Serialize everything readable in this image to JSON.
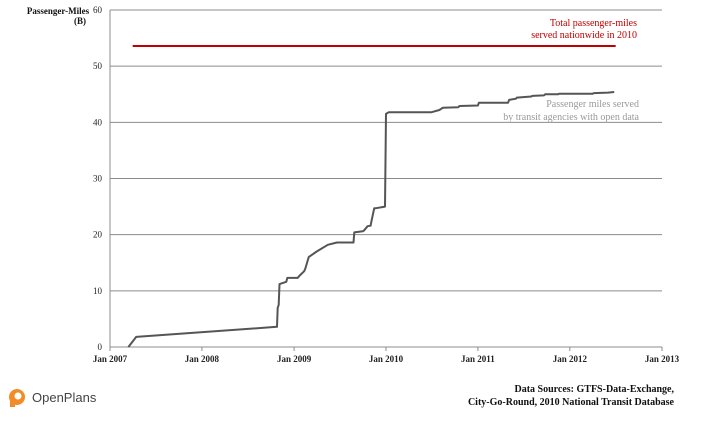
{
  "chart_data": {
    "type": "line",
    "ylabel": [
      "Passenger-Miles",
      "(B)"
    ],
    "xlabel": "",
    "ylim": [
      0,
      60
    ],
    "yticks": [
      0,
      10,
      20,
      30,
      40,
      50,
      60
    ],
    "xlim": [
      "2007-01-01",
      "2013-01-01"
    ],
    "xticks": [
      {
        "date": "2007-01-01",
        "label": "Jan 2007"
      },
      {
        "date": "2008-01-01",
        "label": "Jan 2008"
      },
      {
        "date": "2009-01-01",
        "label": "Jan 2009"
      },
      {
        "date": "2010-01-01",
        "label": "Jan 2010"
      },
      {
        "date": "2011-01-01",
        "label": "Jan 2011"
      },
      {
        "date": "2012-01-01",
        "label": "Jan 2012"
      },
      {
        "date": "2013-01-01",
        "label": "Jan 2013"
      }
    ],
    "grid": "horizontal",
    "reference_line": {
      "value": 53.6,
      "x_start": "2007-04-01",
      "x_end": "2012-07-01",
      "color": "#c00000",
      "label": [
        "Total passenger-miles",
        "served nationwide in 2010"
      ]
    },
    "series": [
      {
        "label": [
          "Passenger miles served",
          "by transit agencies with open data"
        ],
        "color": "#555555",
        "x": [
          "2007-03-15",
          "2007-04-15",
          "2008-10-25",
          "2008-10-28",
          "2008-11-01",
          "2008-11-04",
          "2008-12-01",
          "2008-12-05",
          "2009-01-15",
          "2009-01-25",
          "2009-02-10",
          "2009-02-15",
          "2009-02-28",
          "2009-04-01",
          "2009-05-15",
          "2009-06-20",
          "2009-08-25",
          "2009-08-28",
          "2009-10-01",
          "2009-10-05",
          "2009-10-20",
          "2009-11-01",
          "2009-11-05",
          "2009-11-15",
          "2009-11-20",
          "2009-12-28",
          "2010-01-01",
          "2010-01-12",
          "2010-02-01",
          "2010-07-01",
          "2010-08-01",
          "2010-08-15",
          "2010-10-15",
          "2010-10-20",
          "2011-01-01",
          "2011-01-05",
          "2011-05-01",
          "2011-05-05",
          "2011-06-01",
          "2011-06-05",
          "2011-08-01",
          "2011-08-05",
          "2011-09-20",
          "2011-09-25",
          "2011-11-15",
          "2011-11-20",
          "2012-04-01",
          "2012-04-05",
          "2012-06-01",
          "2012-06-25"
        ],
        "y": [
          0,
          1.8,
          3.6,
          7.0,
          7.5,
          11.2,
          11.6,
          12.3,
          12.3,
          12.8,
          13.5,
          14.0,
          16.0,
          17.0,
          18.2,
          18.6,
          18.6,
          20.4,
          20.6,
          20.7,
          21.5,
          21.6,
          22.5,
          24.7,
          24.7,
          25.0,
          41.5,
          41.8,
          41.8,
          41.8,
          42.2,
          42.6,
          42.7,
          42.9,
          43.0,
          43.5,
          43.5,
          44.0,
          44.2,
          44.4,
          44.6,
          44.7,
          44.8,
          45.0,
          45.0,
          45.1,
          45.1,
          45.2,
          45.3,
          45.4
        ]
      }
    ]
  },
  "source": {
    "line1": "Data Sources: GTFS-Data-Exchange,",
    "line2": "City-Go-Round, 2010 National Transit Database"
  },
  "brand": {
    "name": "OpenPlans",
    "logo_color": "#f28c28",
    "icon": "openplans-logo-icon"
  }
}
